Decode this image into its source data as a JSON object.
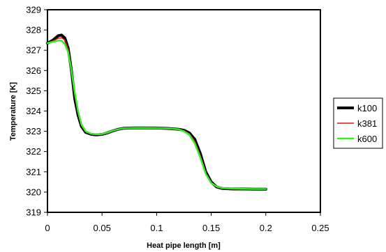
{
  "chart_data": {
    "type": "line",
    "title": "",
    "xlabel": "Heat pipe length [m]",
    "ylabel": "Temperature [K]",
    "xlim": [
      0,
      0.25
    ],
    "ylim": [
      319,
      329
    ],
    "xticks": [
      "0",
      "0.05",
      "0.1",
      "0.15",
      "0.2",
      "0.25"
    ],
    "yticks": [
      "319",
      "320",
      "321",
      "322",
      "323",
      "324",
      "325",
      "326",
      "327",
      "328",
      "329"
    ],
    "grid": false,
    "legend_position": "right",
    "series": [
      {
        "name": "k100",
        "color": "#000000",
        "x": [
          0,
          0.005,
          0.01,
          0.013,
          0.016,
          0.019,
          0.022,
          0.025,
          0.028,
          0.031,
          0.035,
          0.04,
          0.045,
          0.05,
          0.055,
          0.06,
          0.065,
          0.07,
          0.08,
          0.09,
          0.1,
          0.11,
          0.12,
          0.125,
          0.13,
          0.135,
          0.14,
          0.145,
          0.15,
          0.155,
          0.16,
          0.17,
          0.18,
          0.19,
          0.2
        ],
        "y": [
          327.35,
          327.5,
          327.72,
          327.75,
          327.6,
          327.1,
          326.0,
          324.6,
          323.8,
          323.25,
          322.95,
          322.85,
          322.82,
          322.85,
          322.92,
          323.02,
          323.1,
          323.15,
          323.17,
          323.17,
          323.16,
          323.14,
          323.1,
          323.05,
          322.92,
          322.6,
          321.9,
          321.0,
          320.5,
          320.25,
          320.18,
          320.15,
          320.15,
          320.14,
          320.14
        ]
      },
      {
        "name": "k381",
        "color": "#e01010",
        "x": [
          0,
          0.005,
          0.01,
          0.013,
          0.016,
          0.019,
          0.022,
          0.025,
          0.028,
          0.031,
          0.035,
          0.04,
          0.045,
          0.05,
          0.055,
          0.06,
          0.065,
          0.07,
          0.08,
          0.09,
          0.1,
          0.11,
          0.12,
          0.125,
          0.13,
          0.135,
          0.14,
          0.145,
          0.15,
          0.155,
          0.16,
          0.17,
          0.18,
          0.19,
          0.2
        ],
        "y": [
          327.35,
          327.45,
          327.6,
          327.62,
          327.5,
          327.05,
          326.1,
          324.8,
          323.9,
          323.3,
          322.98,
          322.87,
          322.83,
          322.85,
          322.92,
          323.02,
          323.1,
          323.15,
          323.17,
          323.17,
          323.16,
          323.14,
          323.1,
          323.03,
          322.88,
          322.5,
          321.8,
          320.95,
          320.45,
          320.25,
          320.18,
          320.15,
          320.15,
          320.14,
          320.14
        ]
      },
      {
        "name": "k600",
        "color": "#33ee22",
        "x": [
          0,
          0.005,
          0.01,
          0.013,
          0.016,
          0.019,
          0.022,
          0.025,
          0.028,
          0.031,
          0.035,
          0.04,
          0.045,
          0.05,
          0.055,
          0.06,
          0.065,
          0.07,
          0.08,
          0.09,
          0.1,
          0.11,
          0.12,
          0.125,
          0.13,
          0.135,
          0.14,
          0.145,
          0.15,
          0.155,
          0.16,
          0.17,
          0.18,
          0.19,
          0.2
        ],
        "y": [
          327.35,
          327.42,
          327.48,
          327.47,
          327.3,
          326.9,
          326.0,
          324.9,
          324.0,
          323.35,
          323.0,
          322.88,
          322.85,
          322.87,
          322.93,
          323.03,
          323.1,
          323.15,
          323.17,
          323.17,
          323.16,
          323.14,
          323.1,
          323.0,
          322.82,
          322.4,
          321.7,
          320.9,
          320.45,
          320.27,
          320.2,
          320.17,
          320.16,
          320.15,
          320.15
        ]
      }
    ]
  }
}
